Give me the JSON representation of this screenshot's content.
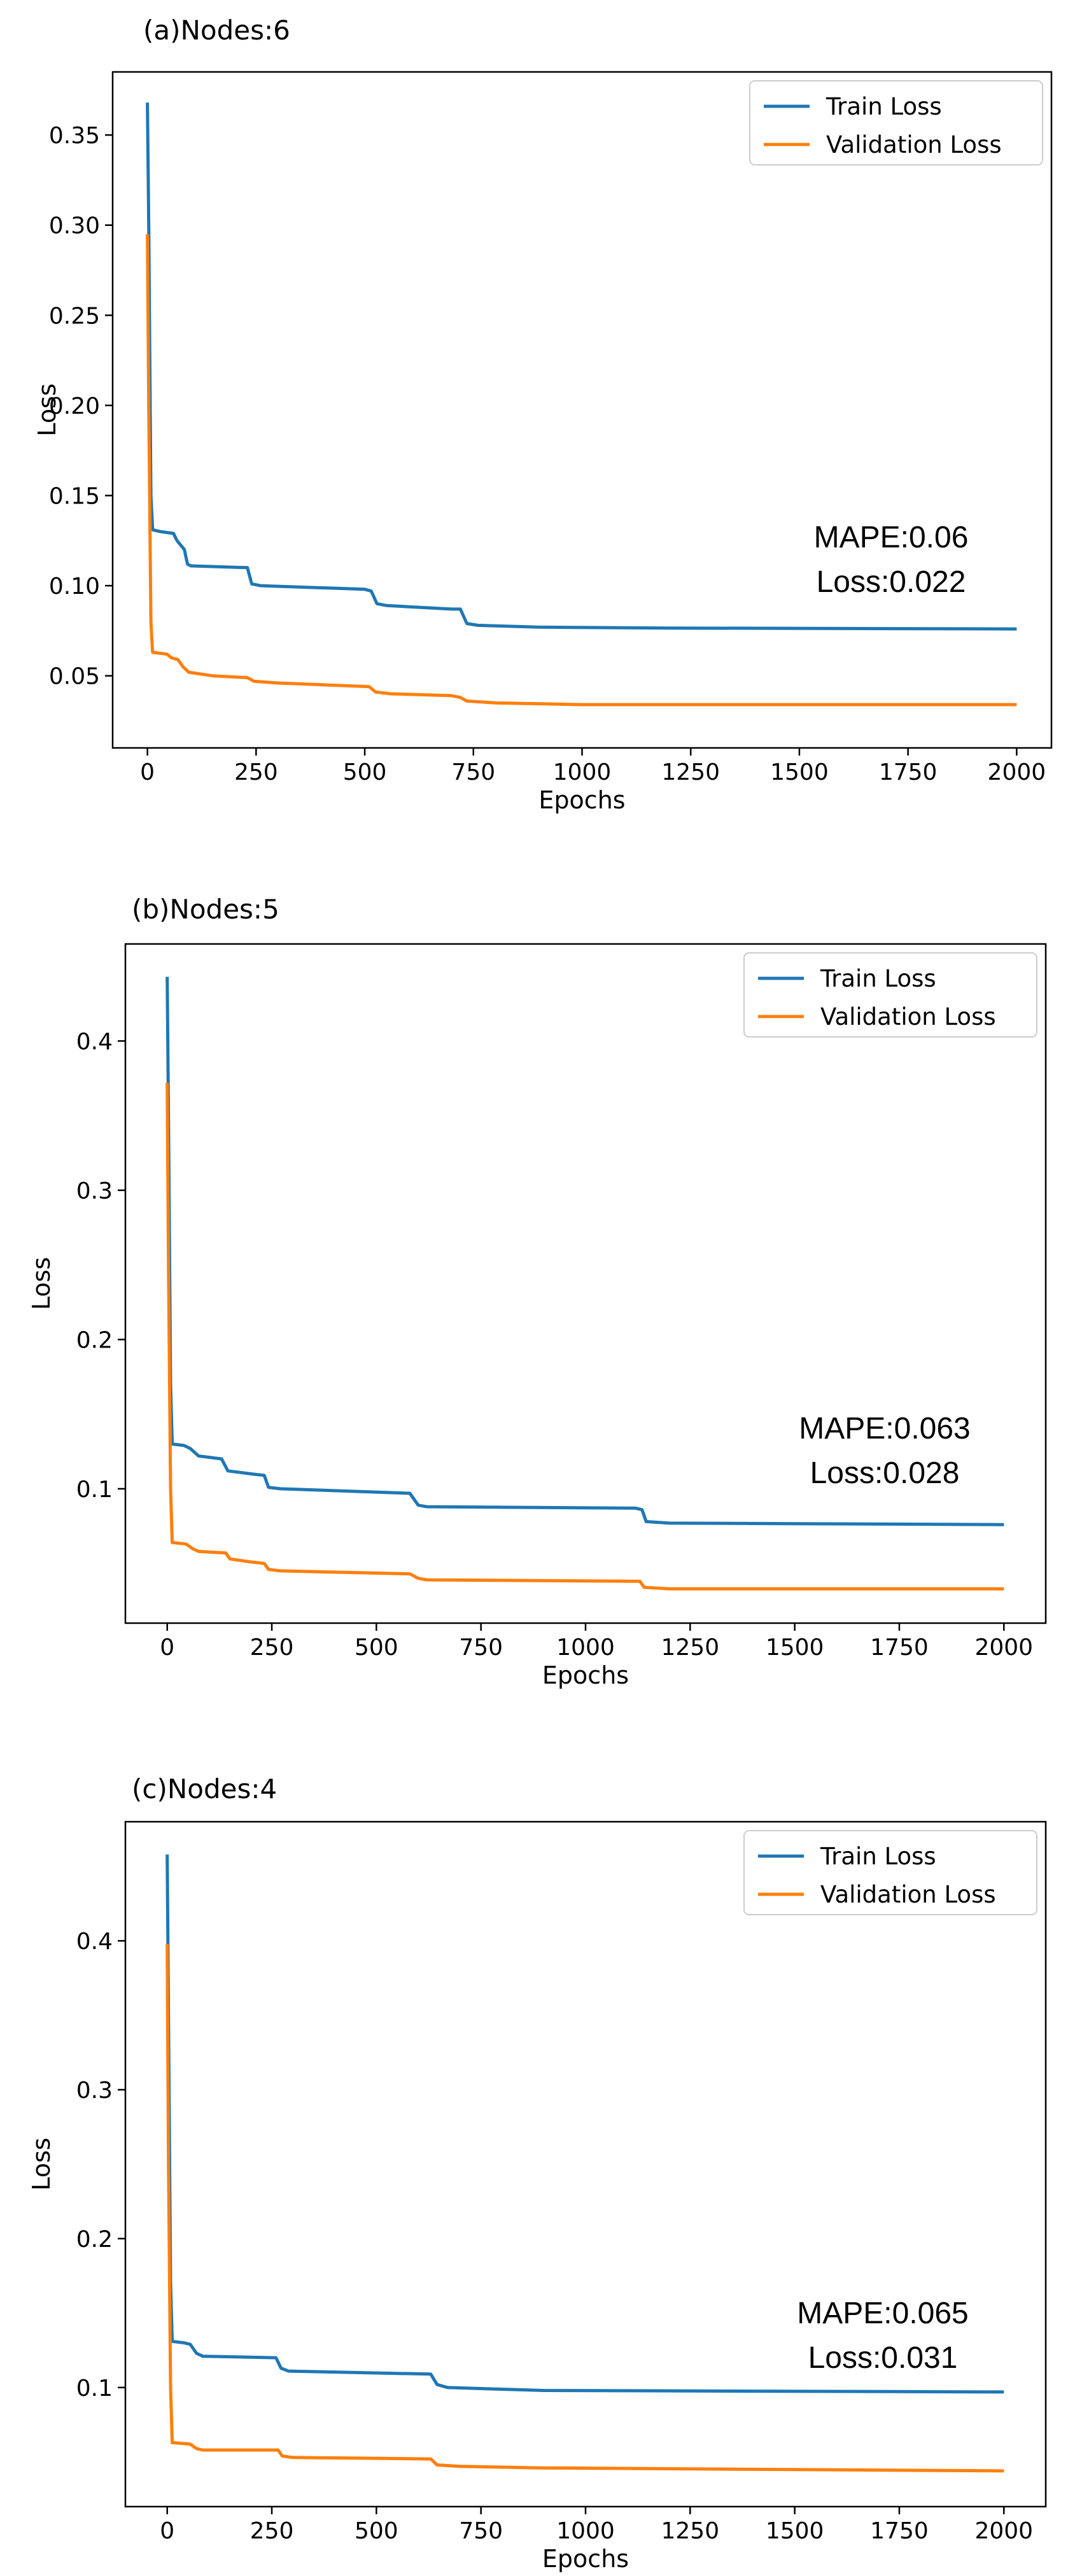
{
  "colors": {
    "train": "#1f77b4",
    "validation": "#ff7f0e",
    "axes": "#000000"
  },
  "chart_data": [
    {
      "type": "line",
      "panel_label": "(a)Nodes:6",
      "xlabel": "Epochs",
      "ylabel": "Loss",
      "xlim": [
        -80,
        2080
      ],
      "ylim": [
        0.01,
        0.385
      ],
      "xticks": [
        0,
        250,
        500,
        750,
        1000,
        1250,
        1500,
        1750,
        2000
      ],
      "xtick_labels": [
        "0",
        "250",
        "500",
        "750",
        "1000",
        "1250",
        "1500",
        "1750",
        "2000"
      ],
      "yticks": [
        0.05,
        0.1,
        0.15,
        0.2,
        0.25,
        0.3,
        0.35
      ],
      "ytick_labels": [
        "0.05",
        "0.10",
        "0.15",
        "0.20",
        "0.25",
        "0.30",
        "0.35"
      ],
      "legend_position": "top-right",
      "annotation": [
        "MAPE:0.06",
        "Loss:0.022"
      ],
      "series": [
        {
          "name": "Train Loss",
          "color": "#1f77b4",
          "points": [
            [
              0,
              0.368
            ],
            [
              3,
              0.3
            ],
            [
              8,
              0.15
            ],
            [
              12,
              0.131
            ],
            [
              30,
              0.13
            ],
            [
              60,
              0.129
            ],
            [
              68,
              0.125
            ],
            [
              85,
              0.12
            ],
            [
              92,
              0.112
            ],
            [
              100,
              0.111
            ],
            [
              230,
              0.11
            ],
            [
              240,
              0.101
            ],
            [
              260,
              0.1
            ],
            [
              500,
              0.098
            ],
            [
              515,
              0.097
            ],
            [
              528,
              0.09
            ],
            [
              550,
              0.089
            ],
            [
              700,
              0.087
            ],
            [
              720,
              0.087
            ],
            [
              735,
              0.079
            ],
            [
              760,
              0.078
            ],
            [
              900,
              0.077
            ],
            [
              1200,
              0.0765
            ],
            [
              2000,
              0.076
            ]
          ]
        },
        {
          "name": "Validation Loss",
          "color": "#ff7f0e",
          "points": [
            [
              0,
              0.295
            ],
            [
              3,
              0.2
            ],
            [
              8,
              0.08
            ],
            [
              12,
              0.063
            ],
            [
              45,
              0.062
            ],
            [
              55,
              0.06
            ],
            [
              70,
              0.059
            ],
            [
              82,
              0.055
            ],
            [
              95,
              0.052
            ],
            [
              150,
              0.05
            ],
            [
              230,
              0.049
            ],
            [
              245,
              0.047
            ],
            [
              300,
              0.046
            ],
            [
              510,
              0.044
            ],
            [
              525,
              0.041
            ],
            [
              560,
              0.04
            ],
            [
              700,
              0.039
            ],
            [
              720,
              0.038
            ],
            [
              735,
              0.036
            ],
            [
              800,
              0.035
            ],
            [
              1000,
              0.034
            ],
            [
              2000,
              0.034
            ]
          ]
        }
      ]
    },
    {
      "type": "line",
      "panel_label": "(b)Nodes:5",
      "xlabel": "Epochs",
      "ylabel": "Loss",
      "xlim": [
        -100,
        2100
      ],
      "ylim": [
        0.01,
        0.465
      ],
      "xticks": [
        0,
        250,
        500,
        750,
        1000,
        1250,
        1500,
        1750,
        2000
      ],
      "xtick_labels": [
        "0",
        "250",
        "500",
        "750",
        "1000",
        "1250",
        "1500",
        "1750",
        "2000"
      ],
      "yticks": [
        0.1,
        0.2,
        0.3,
        0.4
      ],
      "ytick_labels": [
        "0.1",
        "0.2",
        "0.3",
        "0.4"
      ],
      "legend_position": "top-right",
      "annotation": [
        "MAPE:0.063",
        "Loss:0.028"
      ],
      "series": [
        {
          "name": "Train Loss",
          "color": "#1f77b4",
          "points": [
            [
              0,
              0.443
            ],
            [
              3,
              0.35
            ],
            [
              8,
              0.17
            ],
            [
              12,
              0.13
            ],
            [
              40,
              0.129
            ],
            [
              55,
              0.127
            ],
            [
              75,
              0.122
            ],
            [
              130,
              0.12
            ],
            [
              145,
              0.112
            ],
            [
              200,
              0.11
            ],
            [
              232,
              0.109
            ],
            [
              242,
              0.101
            ],
            [
              270,
              0.1
            ],
            [
              580,
              0.097
            ],
            [
              600,
              0.089
            ],
            [
              620,
              0.088
            ],
            [
              1120,
              0.087
            ],
            [
              1135,
              0.086
            ],
            [
              1145,
              0.078
            ],
            [
              1200,
              0.077
            ],
            [
              2000,
              0.076
            ]
          ]
        },
        {
          "name": "Validation Loss",
          "color": "#ff7f0e",
          "points": [
            [
              0,
              0.372
            ],
            [
              3,
              0.25
            ],
            [
              8,
              0.1
            ],
            [
              12,
              0.064
            ],
            [
              45,
              0.063
            ],
            [
              60,
              0.06
            ],
            [
              75,
              0.058
            ],
            [
              140,
              0.057
            ],
            [
              150,
              0.053
            ],
            [
              200,
              0.051
            ],
            [
              232,
              0.05
            ],
            [
              242,
              0.046
            ],
            [
              270,
              0.045
            ],
            [
              580,
              0.043
            ],
            [
              600,
              0.04
            ],
            [
              620,
              0.039
            ],
            [
              1130,
              0.038
            ],
            [
              1140,
              0.034
            ],
            [
              1200,
              0.033
            ],
            [
              2000,
              0.033
            ]
          ]
        }
      ]
    },
    {
      "type": "line",
      "panel_label": "(c)Nodes:4",
      "xlabel": "Epochs",
      "ylabel": "Loss",
      "xlim": [
        -100,
        2100
      ],
      "ylim": [
        0.02,
        0.48
      ],
      "xticks": [
        0,
        250,
        500,
        750,
        1000,
        1250,
        1500,
        1750,
        2000
      ],
      "xtick_labels": [
        "0",
        "250",
        "500",
        "750",
        "1000",
        "1250",
        "1500",
        "1750",
        "2000"
      ],
      "yticks": [
        0.1,
        0.2,
        0.3,
        0.4
      ],
      "ytick_labels": [
        "0.1",
        "0.2",
        "0.3",
        "0.4"
      ],
      "legend_position": "top-right",
      "annotation": [
        "MAPE:0.065",
        "Loss:0.031"
      ],
      "series": [
        {
          "name": "Train Loss",
          "color": "#1f77b4",
          "points": [
            [
              0,
              0.458
            ],
            [
              3,
              0.35
            ],
            [
              8,
              0.17
            ],
            [
              12,
              0.131
            ],
            [
              40,
              0.13
            ],
            [
              55,
              0.129
            ],
            [
              70,
              0.123
            ],
            [
              85,
              0.121
            ],
            [
              260,
              0.12
            ],
            [
              272,
              0.113
            ],
            [
              290,
              0.111
            ],
            [
              630,
              0.109
            ],
            [
              645,
              0.102
            ],
            [
              670,
              0.1
            ],
            [
              900,
              0.098
            ],
            [
              2000,
              0.097
            ]
          ]
        },
        {
          "name": "Validation Loss",
          "color": "#ff7f0e",
          "points": [
            [
              0,
              0.398
            ],
            [
              3,
              0.25
            ],
            [
              8,
              0.1
            ],
            [
              12,
              0.063
            ],
            [
              55,
              0.062
            ],
            [
              70,
              0.059
            ],
            [
              85,
              0.058
            ],
            [
              265,
              0.058
            ],
            [
              275,
              0.054
            ],
            [
              300,
              0.053
            ],
            [
              630,
              0.052
            ],
            [
              645,
              0.048
            ],
            [
              700,
              0.047
            ],
            [
              900,
              0.046
            ],
            [
              2000,
              0.044
            ]
          ]
        }
      ]
    }
  ]
}
